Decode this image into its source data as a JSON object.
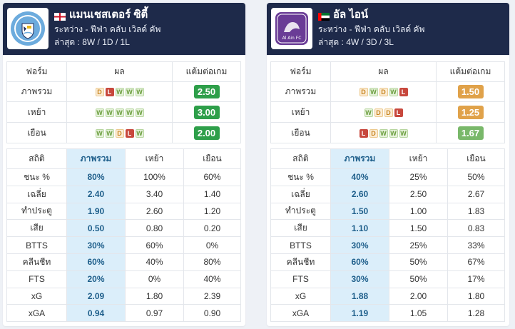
{
  "colors": {
    "header_bg": "#1e2a4a",
    "win": "#6b9e3e",
    "draw": "#c8851f",
    "loss": "#c8483d",
    "ppg_green": "#2e9f4a",
    "ppg_orange": "#e0a24a",
    "ppg_lightgreen": "#79b86a",
    "highlight": "#dbeefa"
  },
  "headers": {
    "form": "ฟอร์ม",
    "result": "ผล",
    "ppg": "แต้มต่อเกม",
    "stats": "สถิติ",
    "overall": "ภาพรวม",
    "home": "เหย้า",
    "away": "เยือน"
  },
  "teams": [
    {
      "name": "แมนเชสเตอร์ ซิตี้",
      "flag": "england-flag",
      "competition": "ระหว่าง - ฟีฟ่า คลับ เวิลด์ คัพ",
      "last": "ล่าสุด : 8W / 1D / 1L",
      "logo": "manchester-city-crest",
      "logo_text": "MANCHESTER CITY",
      "form": [
        {
          "label": "ภาพรวม",
          "results": [
            "D",
            "L",
            "W",
            "W",
            "W"
          ],
          "ppg": "2.50",
          "ppg_color": "#2e9f4a"
        },
        {
          "label": "เหย้า",
          "results": [
            "W",
            "W",
            "W",
            "W",
            "W"
          ],
          "ppg": "3.00",
          "ppg_color": "#2e9f4a"
        },
        {
          "label": "เยือน",
          "results": [
            "W",
            "W",
            "D",
            "L",
            "W"
          ],
          "ppg": "2.00",
          "ppg_color": "#2e9f4a"
        }
      ],
      "stats": [
        {
          "label": "ชนะ %",
          "overall": "80%",
          "home": "100%",
          "away": "60%"
        },
        {
          "label": "เฉลี่ย",
          "overall": "2.40",
          "home": "3.40",
          "away": "1.40"
        },
        {
          "label": "ทำประตู",
          "overall": "1.90",
          "home": "2.60",
          "away": "1.20"
        },
        {
          "label": "เสีย",
          "overall": "0.50",
          "home": "0.80",
          "away": "0.20"
        },
        {
          "label": "BTTS",
          "overall": "30%",
          "home": "60%",
          "away": "0%"
        },
        {
          "label": "คลีนชีท",
          "overall": "60%",
          "home": "40%",
          "away": "80%"
        },
        {
          "label": "FTS",
          "overall": "20%",
          "home": "0%",
          "away": "40%"
        },
        {
          "label": "xG",
          "overall": "2.09",
          "home": "1.80",
          "away": "2.39"
        },
        {
          "label": "xGA",
          "overall": "0.94",
          "home": "0.97",
          "away": "0.90"
        }
      ]
    },
    {
      "name": "อัล ไอน์",
      "flag": "uae-flag",
      "competition": "ระหว่าง - ฟีฟ่า คลับ เวิลด์ คัพ",
      "last": "ล่าสุด : 4W / 3D / 3L",
      "logo": "al-ain-crest",
      "logo_text": "Al Ain FC",
      "form": [
        {
          "label": "ภาพรวม",
          "results": [
            "D",
            "W",
            "D",
            "W",
            "L"
          ],
          "ppg": "1.50",
          "ppg_color": "#e0a24a"
        },
        {
          "label": "เหย้า",
          "results": [
            "W",
            "D",
            "D",
            "L"
          ],
          "ppg": "1.25",
          "ppg_color": "#e0a24a"
        },
        {
          "label": "เยือน",
          "results": [
            "L",
            "D",
            "W",
            "W",
            "W"
          ],
          "ppg": "1.67",
          "ppg_color": "#79b86a"
        }
      ],
      "stats": [
        {
          "label": "ชนะ %",
          "overall": "40%",
          "home": "25%",
          "away": "50%"
        },
        {
          "label": "เฉลี่ย",
          "overall": "2.60",
          "home": "2.50",
          "away": "2.67"
        },
        {
          "label": "ทำประตู",
          "overall": "1.50",
          "home": "1.00",
          "away": "1.83"
        },
        {
          "label": "เสีย",
          "overall": "1.10",
          "home": "1.50",
          "away": "0.83"
        },
        {
          "label": "BTTS",
          "overall": "30%",
          "home": "25%",
          "away": "33%"
        },
        {
          "label": "คลีนชีท",
          "overall": "60%",
          "home": "50%",
          "away": "67%"
        },
        {
          "label": "FTS",
          "overall": "30%",
          "home": "50%",
          "away": "17%"
        },
        {
          "label": "xG",
          "overall": "1.88",
          "home": "2.00",
          "away": "1.80"
        },
        {
          "label": "xGA",
          "overall": "1.19",
          "home": "1.05",
          "away": "1.28"
        }
      ]
    }
  ]
}
